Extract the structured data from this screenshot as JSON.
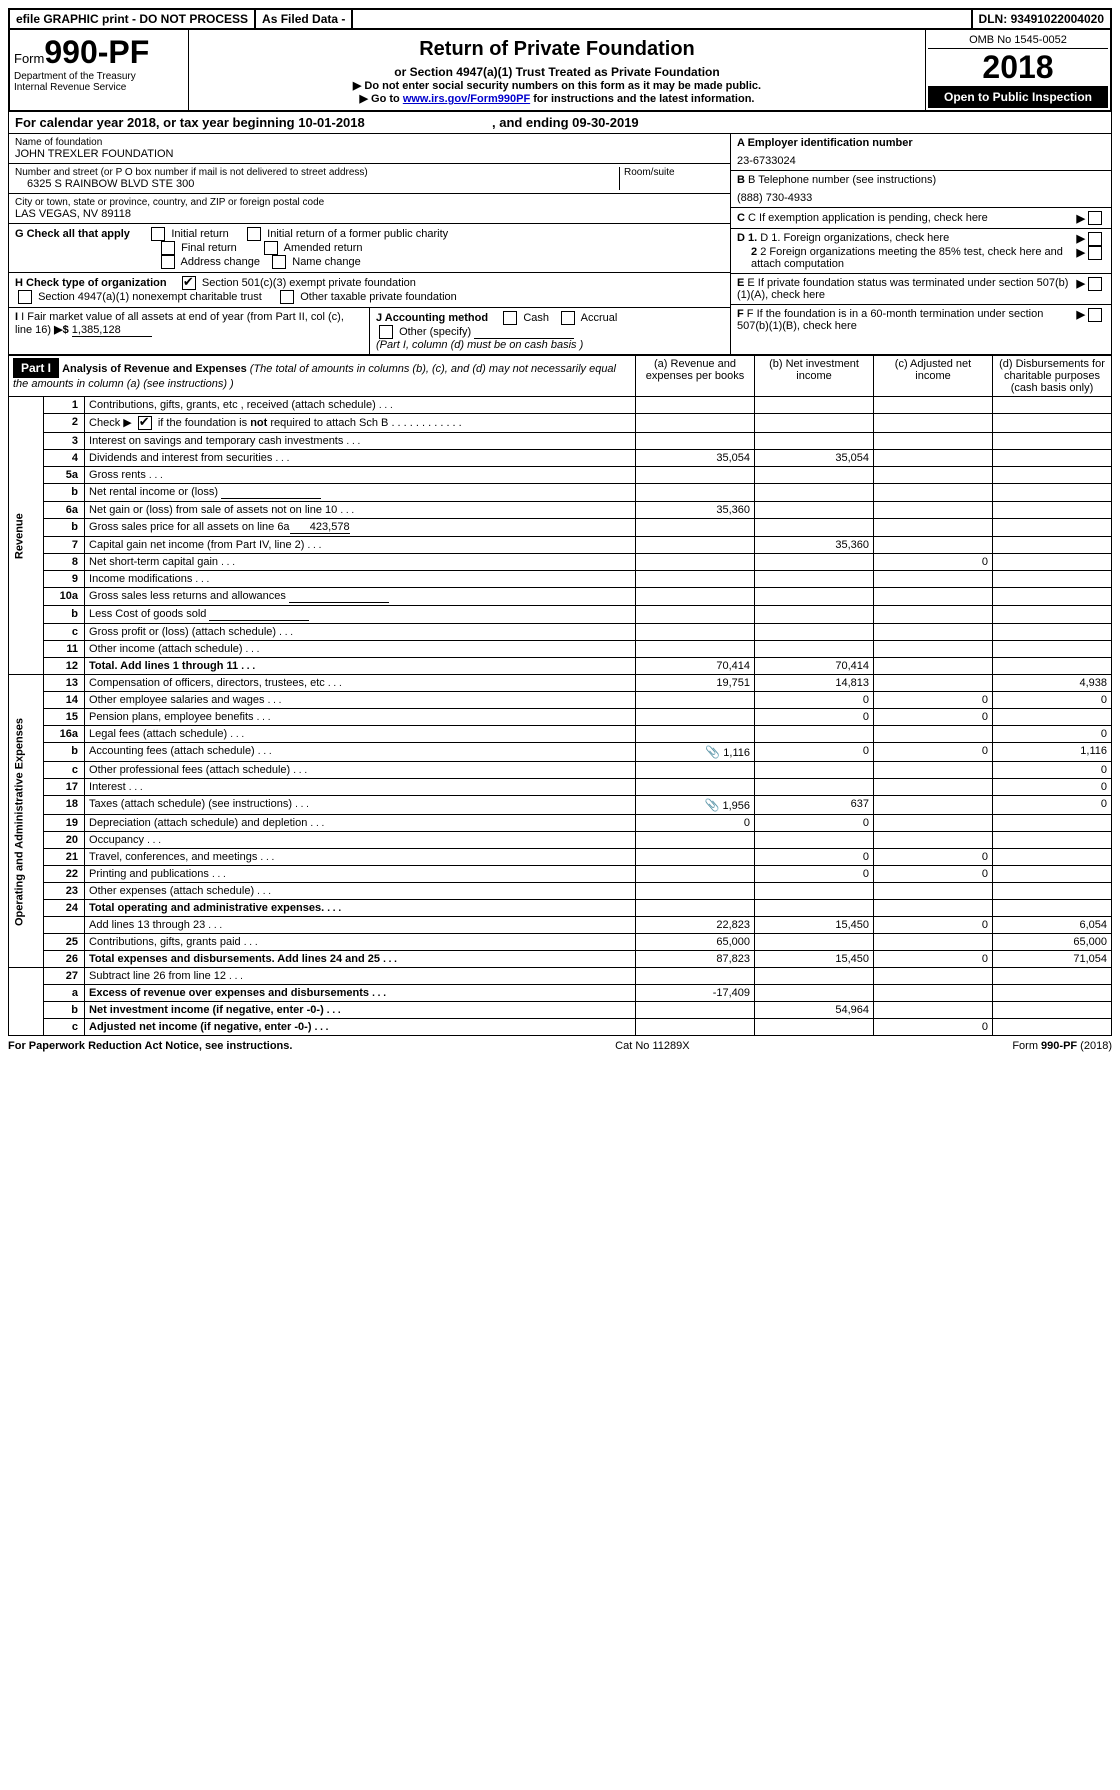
{
  "topbar": {
    "efile": "efile GRAPHIC print - DO NOT PROCESS",
    "asfiled": "As Filed Data -",
    "dln_label": "DLN:",
    "dln": "93491022004020"
  },
  "header": {
    "form_word": "Form",
    "form_no": "990-PF",
    "dept1": "Department of the Treasury",
    "dept2": "Internal Revenue Service",
    "title": "Return of Private Foundation",
    "subtitle": "or Section 4947(a)(1) Trust Treated as Private Foundation",
    "note1": "▶ Do not enter social security numbers on this form as it may be made public.",
    "note2_pre": "▶ Go to ",
    "note2_link": "www.irs.gov/Form990PF",
    "note2_post": " for instructions and the latest information.",
    "omb": "OMB No 1545-0052",
    "year": "2018",
    "open_pub": "Open to Public Inspection"
  },
  "cal_year": {
    "pre": "For calendar year 2018, or tax year beginning ",
    "begin": "10-01-2018",
    "mid": ", and ending ",
    "end": "09-30-2019"
  },
  "left": {
    "name_lbl": "Name of foundation",
    "name": "JOHN TREXLER FOUNDATION",
    "street_lbl": "Number and street (or P O  box number if mail is not delivered to street address)",
    "street": "6325 S RAINBOW BLVD STE 300",
    "room_lbl": "Room/suite",
    "city_lbl": "City or town, state or province, country, and ZIP or foreign postal code",
    "city": "LAS VEGAS, NV  89118",
    "g_lbl": "G Check all that apply",
    "g_initial": "Initial return",
    "g_initial_former": "Initial return of a former public charity",
    "g_final": "Final return",
    "g_amended": "Amended return",
    "g_addr": "Address change",
    "g_name": "Name change",
    "h_lbl": "H Check type of organization",
    "h_501c3": "Section 501(c)(3) exempt private foundation",
    "h_4947": "Section 4947(a)(1) nonexempt charitable trust",
    "h_other_tax": "Other taxable private foundation",
    "i_lbl": "I Fair market value of all assets at end of year (from Part II, col  (c), line 16)",
    "i_val": "1,385,128",
    "j_lbl": "J Accounting method",
    "j_cash": "Cash",
    "j_accrual": "Accrual",
    "j_other": "Other (specify)",
    "j_note": "(Part I, column (d) must be on cash basis )"
  },
  "right": {
    "a_lbl": "A Employer identification number",
    "a_val": "23-6733024",
    "b_lbl": "B Telephone number (see instructions)",
    "b_val": "(888) 730-4933",
    "c_lbl": "C If exemption application is pending, check here",
    "d1_lbl": "D 1. Foreign organizations, check here",
    "d2_lbl": "2  Foreign organizations meeting the 85% test, check here and attach computation",
    "e_lbl": "E  If private foundation status was terminated under section 507(b)(1)(A), check here",
    "f_lbl": "F  If the foundation is in a 60-month termination under section 507(b)(1)(B), check here"
  },
  "part1": {
    "label": "Part I",
    "title": "Analysis of Revenue and Expenses",
    "title_note": "(The total of amounts in columns (b), (c), and (d) may not necessarily equal the amounts in column (a) (see instructions) )",
    "col_a": "(a) Revenue and expenses per books",
    "col_b": "(b) Net investment income",
    "col_c": "(c) Adjusted net income",
    "col_d": "(d) Disbursements for charitable purposes (cash basis only)"
  },
  "vert": {
    "rev": "Revenue",
    "exp": "Operating and Administrative Expenses"
  },
  "rows": [
    {
      "n": "1",
      "d": "Contributions, gifts, grants, etc , received (attach schedule)"
    },
    {
      "n": "2",
      "d": "Check ▶ ☑ if the foundation is not required to attach Sch  B",
      "d2": "not"
    },
    {
      "n": "3",
      "d": "Interest on savings and temporary cash investments"
    },
    {
      "n": "4",
      "d": "Dividends and interest from securities",
      "a": "35,054",
      "b": "35,054"
    },
    {
      "n": "5a",
      "d": "Gross rents"
    },
    {
      "n": "b",
      "d": "Net rental income or (loss)",
      "inline": true
    },
    {
      "n": "6a",
      "d": "Net gain or (loss) from sale of assets not on line 10",
      "a": "35,360"
    },
    {
      "n": "b",
      "d": "Gross sales price for all assets on line 6a",
      "inline_val": "423,578"
    },
    {
      "n": "7",
      "d": "Capital gain net income (from Part IV, line 2)",
      "b": "35,360"
    },
    {
      "n": "8",
      "d": "Net short-term capital gain",
      "c": "0"
    },
    {
      "n": "9",
      "d": "Income modifications"
    },
    {
      "n": "10a",
      "d": "Gross sales less returns and allowances",
      "inline": true
    },
    {
      "n": "b",
      "d": "Less  Cost of goods sold",
      "inline": true
    },
    {
      "n": "c",
      "d": "Gross profit or (loss) (attach schedule)"
    },
    {
      "n": "11",
      "d": "Other income (attach schedule)"
    },
    {
      "n": "12",
      "d": "Total. Add lines 1 through 11",
      "bold": true,
      "a": "70,414",
      "b": "70,414"
    },
    {
      "n": "13",
      "d": "Compensation of officers, directors, trustees, etc",
      "a": "19,751",
      "b": "14,813",
      "dd": "4,938"
    },
    {
      "n": "14",
      "d": "Other employee salaries and wages",
      "b": "0",
      "c": "0",
      "dd": "0"
    },
    {
      "n": "15",
      "d": "Pension plans, employee benefits",
      "b": "0",
      "c": "0"
    },
    {
      "n": "16a",
      "d": "Legal fees (attach schedule)",
      "dd": "0"
    },
    {
      "n": "b",
      "d": "Accounting fees (attach schedule)",
      "attach": true,
      "a": "1,116",
      "b": "0",
      "c": "0",
      "dd": "1,116"
    },
    {
      "n": "c",
      "d": "Other professional fees (attach schedule)",
      "dd": "0"
    },
    {
      "n": "17",
      "d": "Interest",
      "dd": "0"
    },
    {
      "n": "18",
      "d": "Taxes (attach schedule) (see instructions)",
      "attach": true,
      "a": "1,956",
      "b": "637",
      "dd": "0"
    },
    {
      "n": "19",
      "d": "Depreciation (attach schedule) and depletion",
      "a": "0",
      "b": "0"
    },
    {
      "n": "20",
      "d": "Occupancy"
    },
    {
      "n": "21",
      "d": "Travel, conferences, and meetings",
      "b": "0",
      "c": "0"
    },
    {
      "n": "22",
      "d": "Printing and publications",
      "b": "0",
      "c": "0"
    },
    {
      "n": "23",
      "d": "Other expenses (attach schedule)"
    },
    {
      "n": "24",
      "d": "Total operating and administrative expenses.",
      "bold": true
    },
    {
      "n": "",
      "d": "Add lines 13 through 23",
      "a": "22,823",
      "b": "15,450",
      "c": "0",
      "dd": "6,054"
    },
    {
      "n": "25",
      "d": "Contributions, gifts, grants paid",
      "a": "65,000",
      "dd": "65,000"
    },
    {
      "n": "26",
      "d": "Total expenses and disbursements. Add lines 24 and 25",
      "bold": true,
      "a": "87,823",
      "b": "15,450",
      "c": "0",
      "dd": "71,054"
    },
    {
      "n": "27",
      "d": "Subtract line 26 from line 12"
    },
    {
      "n": "a",
      "d": "Excess of revenue over expenses and disbursements",
      "bold": true,
      "a": "-17,409"
    },
    {
      "n": "b",
      "d": "Net investment income (if negative, enter -0-)",
      "bold": true,
      "b": "54,964"
    },
    {
      "n": "c",
      "d": "Adjusted net income (if negative, enter -0-)",
      "bold": true,
      "c": "0"
    }
  ],
  "footer": {
    "left": "For Paperwork Reduction Act Notice, see instructions.",
    "mid": "Cat  No  11289X",
    "right": "Form 990-PF (2018)"
  }
}
